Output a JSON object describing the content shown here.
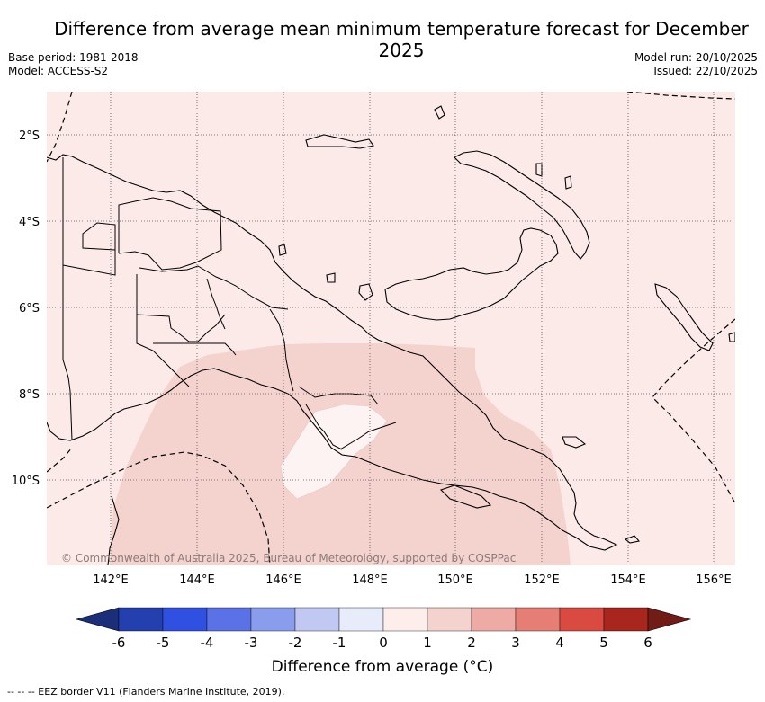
{
  "title": "Difference from average mean minimum temperature forecast for December 2025",
  "base_period": "Base period: 1981-2018",
  "model": "Model: ACCESS-S2",
  "model_run": "Model run: 20/10/2025",
  "issued": "Issued: 22/10/2025",
  "map": {
    "region": "Papua New Guinea",
    "lon_range": [
      140.6,
      156.5
    ],
    "lat_range": [
      -12,
      -1
    ],
    "lat_labels": [
      "2°S",
      "4°S",
      "6°S",
      "8°S",
      "10°S"
    ],
    "lon_labels": [
      "142°E",
      "144°E",
      "146°E",
      "148°E",
      "150°E",
      "152°E",
      "154°E",
      "156°E"
    ],
    "copyright": "© Commonwealth of Australia 2025, Bureau of Meteorology, supported by COSPPac",
    "colors": {
      "background_0_to_1": "#fbeae8",
      "anomaly_1_to_2": "#f4d3cf",
      "anomaly_minus1_to_0": "#fdf3f2",
      "coast": "#000000",
      "grid": "#555555"
    }
  },
  "colorbar": {
    "ticks": [
      "-6",
      "-5",
      "-4",
      "-3",
      "-2",
      "-1",
      "0",
      "1",
      "2",
      "3",
      "4",
      "5",
      "6"
    ],
    "colors": [
      "#243fae",
      "#2f50e0",
      "#5b72e6",
      "#8a9ded",
      "#c1c9f3",
      "#e7ebfa",
      "#fdeeec",
      "#f4d3cf",
      "#eeaba5",
      "#e57f76",
      "#d94a40",
      "#a8261e"
    ],
    "under_color": "#1b2e7a",
    "over_color": "#721c17",
    "label": "Difference from average (°C)"
  },
  "footer": "-- -- -- EEZ border V11 (Flanders Marine Institute, 2019)."
}
